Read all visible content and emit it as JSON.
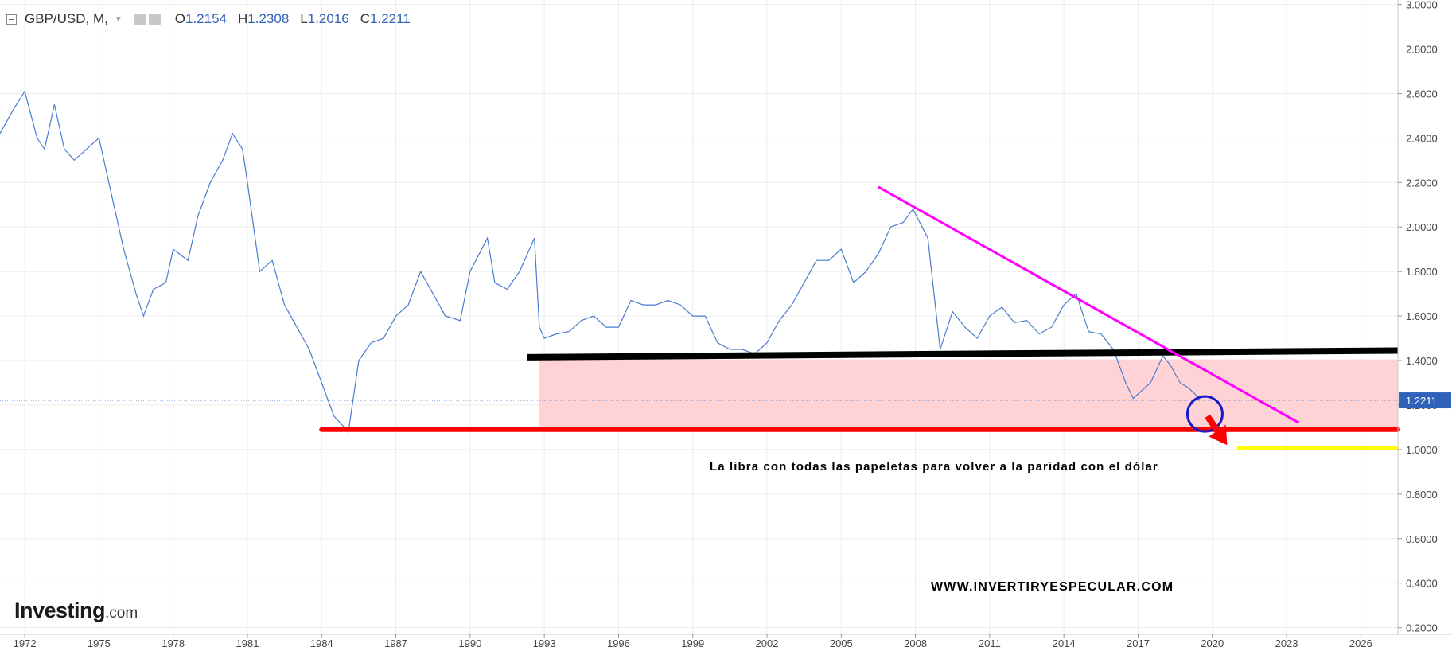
{
  "header": {
    "symbol": "GBP/USD, M,",
    "open_key": "O",
    "open": "1.2154",
    "high_key": "H",
    "high": "1.2308",
    "low_key": "L",
    "low": "1.2016",
    "close_key": "C",
    "close": "1.2211"
  },
  "brand": {
    "name": "Investing",
    "suffix": ".com"
  },
  "annotations": {
    "parity_note": "La libra con todas las papeletas para volver a la paridad con el dólar",
    "website": "WWW.INVERTIRYESPECULAR.COM"
  },
  "colors": {
    "price_line": "#4a7bd0",
    "axis_text": "#444444",
    "grid": "#ececec",
    "resistance_line": "#ff00ff",
    "support_zone_top": "#000000",
    "support_zone_bottom": "#ff0000",
    "zone_fill": "#ffd3d6",
    "parity_marker": "#ffff00",
    "circle": "#1a1acc",
    "arrow": "#ff0000",
    "price_badge": "#2f62b8"
  },
  "chart_data": {
    "type": "line",
    "series": [
      {
        "x": [
          1971.0,
          1971.5,
          1972.0,
          1972.5,
          1972.8,
          1973.2,
          1973.6,
          1974.0,
          1974.5,
          1975.0,
          1975.5,
          1976.0,
          1976.5,
          1976.8,
          1977.2,
          1977.7,
          1978.0,
          1978.6,
          1979.0,
          1979.5,
          1980.0,
          1980.4,
          1980.8,
          1981.0,
          1981.5,
          1982.0,
          1982.5,
          1983.0,
          1983.5,
          1984.0,
          1984.5,
          1985.08,
          1985.5,
          1986.0,
          1986.5,
          1987.0,
          1987.5,
          1988.0,
          1988.5,
          1989.0,
          1989.6,
          1990.0,
          1990.7,
          1991.0,
          1991.5,
          1992.0,
          1992.6,
          1992.8,
          1993.0,
          1993.5,
          1994.0,
          1994.5,
          1995.0,
          1995.5,
          1996.0,
          1996.5,
          1997.0,
          1997.5,
          1998.0,
          1998.5,
          1999.0,
          1999.5,
          2000.0,
          2000.5,
          2001.0,
          2001.5,
          2002.0,
          2002.5,
          2003.0,
          2003.5,
          2004.0,
          2004.5,
          2005.0,
          2005.5,
          2006.0,
          2006.5,
          2007.0,
          2007.5,
          2007.9,
          2008.5,
          2008.9,
          2009.0,
          2009.5,
          2010.0,
          2010.5,
          2011.0,
          2011.5,
          2012.0,
          2012.5,
          2013.0,
          2013.5,
          2014.0,
          2014.5,
          2015.0,
          2015.5,
          2016.0,
          2016.5,
          2016.8,
          2017.0,
          2017.5,
          2018.0,
          2018.3,
          2018.7,
          2019.0,
          2019.3,
          2019.5
        ],
        "y": [
          2.42,
          2.52,
          2.61,
          2.4,
          2.35,
          2.55,
          2.35,
          2.3,
          2.35,
          2.4,
          2.15,
          1.9,
          1.7,
          1.6,
          1.72,
          1.75,
          1.9,
          1.85,
          2.05,
          2.2,
          2.3,
          2.42,
          2.35,
          2.2,
          1.8,
          1.85,
          1.65,
          1.55,
          1.45,
          1.3,
          1.15,
          1.08,
          1.4,
          1.48,
          1.5,
          1.6,
          1.65,
          1.8,
          1.7,
          1.6,
          1.58,
          1.8,
          1.95,
          1.75,
          1.72,
          1.8,
          1.95,
          1.55,
          1.5,
          1.52,
          1.53,
          1.58,
          1.6,
          1.55,
          1.55,
          1.67,
          1.65,
          1.65,
          1.67,
          1.65,
          1.6,
          1.6,
          1.48,
          1.45,
          1.45,
          1.43,
          1.48,
          1.58,
          1.65,
          1.75,
          1.85,
          1.85,
          1.9,
          1.75,
          1.8,
          1.88,
          2.0,
          2.02,
          2.08,
          1.95,
          1.55,
          1.45,
          1.62,
          1.55,
          1.5,
          1.6,
          1.64,
          1.57,
          1.58,
          1.52,
          1.55,
          1.65,
          1.7,
          1.53,
          1.52,
          1.45,
          1.3,
          1.23,
          1.25,
          1.3,
          1.42,
          1.38,
          1.3,
          1.28,
          1.25,
          1.22
        ]
      }
    ],
    "x_ticks": [
      "1972",
      "1975",
      "1978",
      "1981",
      "1984",
      "1987",
      "1990",
      "1993",
      "1996",
      "1999",
      "2002",
      "2005",
      "2008",
      "2011",
      "2014",
      "2017",
      "2020",
      "2023",
      "2026"
    ],
    "y_ticks": [
      "3.0000",
      "2.8000",
      "2.6000",
      "2.4000",
      "2.2000",
      "2.0000",
      "1.8000",
      "1.6000",
      "1.4000",
      "1.2000",
      "1.0000",
      "0.8000",
      "0.6000",
      "0.4000",
      "0.2000"
    ],
    "xlim": [
      1971.0,
      2027.5
    ],
    "ylim": [
      0.17,
      3.02
    ],
    "current_price": "1.2211",
    "drawings": {
      "resistance_line": {
        "from": [
          2006.5,
          2.18
        ],
        "to": [
          2023.5,
          1.12
        ]
      },
      "support_line_black": {
        "from": [
          1992.3,
          1.415
        ],
        "to": [
          2027.5,
          1.445
        ]
      },
      "support_line_red": {
        "from": [
          1984.0,
          1.09
        ],
        "to": [
          2027.5,
          1.09
        ]
      },
      "zone": {
        "x": [
          1992.8,
          2027.5
        ],
        "y": [
          1.09,
          1.405
        ]
      },
      "parity_line": {
        "from": [
          2021.0,
          1.005
        ],
        "to": [
          2027.5,
          1.005
        ]
      },
      "circle_center": [
        2019.7,
        1.16
      ],
      "arrow": {
        "from": [
          2019.8,
          1.15
        ],
        "to": [
          2020.6,
          1.02
        ]
      }
    }
  }
}
